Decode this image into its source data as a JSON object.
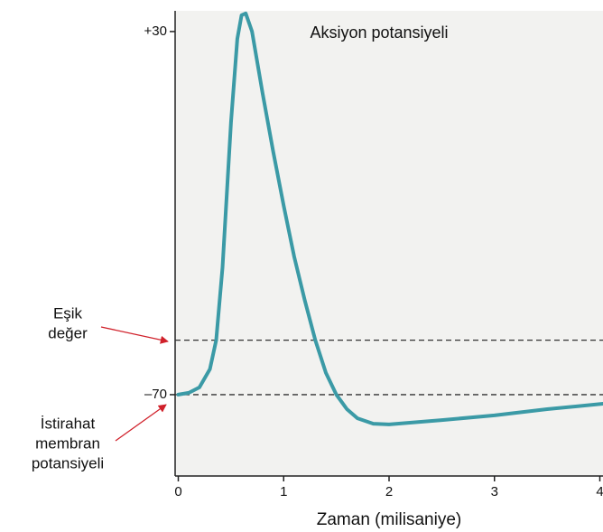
{
  "chart_data": {
    "type": "line",
    "title": "Aksiyon potansiyeli",
    "x_label": "Zaman (milisaniye)",
    "x": [
      0,
      0.1,
      0.2,
      0.3,
      0.36,
      0.42,
      0.5,
      0.56,
      0.6,
      0.64,
      0.7,
      0.8,
      0.9,
      1.0,
      1.1,
      1.2,
      1.3,
      1.4,
      1.5,
      1.6,
      1.7,
      1.85,
      2.0,
      2.5,
      3.0,
      3.5,
      4.03
    ],
    "series": [
      {
        "color": "#3b9aa6",
        "values": [
          -70,
          -69.5,
          -68,
          -63,
          -55,
          -35,
          5,
          28,
          34.5,
          35,
          30,
          13,
          -3,
          -18,
          -32,
          -44,
          -55,
          -64,
          -70,
          -74,
          -76.5,
          -78,
          -78.2,
          -77,
          -75.7,
          -74,
          -72.5
        ]
      }
    ],
    "xlim": [
      -0.03,
      4.03
    ],
    "ylim": [
      -92.4,
      35.7
    ],
    "xticks": [
      0,
      1,
      2,
      3,
      4
    ],
    "yticks": [
      {
        "value": 30,
        "label": "+30"
      },
      {
        "value": -70,
        "label": "–70"
      }
    ],
    "reference_lines": [
      {
        "value": -55,
        "label": [
          "Eşik",
          "değer"
        ]
      },
      {
        "value": -70,
        "label": [
          "İstirahat",
          "membran",
          "potansiyeli"
        ]
      }
    ]
  }
}
